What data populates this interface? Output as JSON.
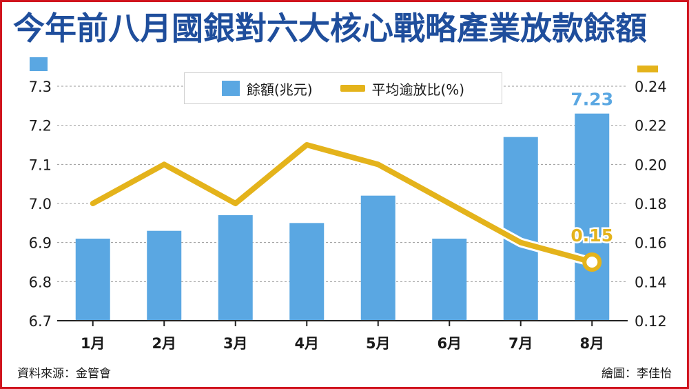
{
  "title": "今年前八月國銀對六大核心戰略產業放款餘額",
  "legend": {
    "bar_label": "餘額(兆元)",
    "line_label": "平均逾放比(%)"
  },
  "source": "資料來源：金管會",
  "credit": "繪圖：李佳怡",
  "colors": {
    "bar": "#5aa7e2",
    "line": "#e4b31b",
    "title": "#1f4e9c",
    "border": "#d0141e"
  },
  "chart_data": {
    "type": "bar",
    "categories": [
      "1月",
      "2月",
      "3月",
      "4月",
      "5月",
      "6月",
      "7月",
      "8月"
    ],
    "series": [
      {
        "name": "餘額(兆元)",
        "type": "bar",
        "axis": "left",
        "values": [
          6.91,
          6.93,
          6.97,
          6.95,
          7.02,
          6.91,
          7.17,
          7.23
        ]
      },
      {
        "name": "平均逾放比(%)",
        "type": "line",
        "axis": "right",
        "values": [
          0.18,
          0.2,
          0.18,
          0.21,
          0.2,
          0.18,
          0.16,
          0.15
        ]
      }
    ],
    "data_labels": [
      {
        "series": 0,
        "index": 7,
        "text": "7.23"
      },
      {
        "series": 1,
        "index": 7,
        "text": "0.15"
      }
    ],
    "y_left": {
      "ylim": [
        6.7,
        7.3
      ],
      "ticks": [
        "6.7",
        "6.8",
        "6.9",
        "7.0",
        "7.1",
        "7.2",
        "7.3"
      ]
    },
    "y_right": {
      "ylim": [
        0.12,
        0.24
      ],
      "ticks": [
        "0.12",
        "0.14",
        "0.16",
        "0.18",
        "0.20",
        "0.22",
        "0.24"
      ]
    },
    "grid": true,
    "legend_position": "top-center"
  }
}
